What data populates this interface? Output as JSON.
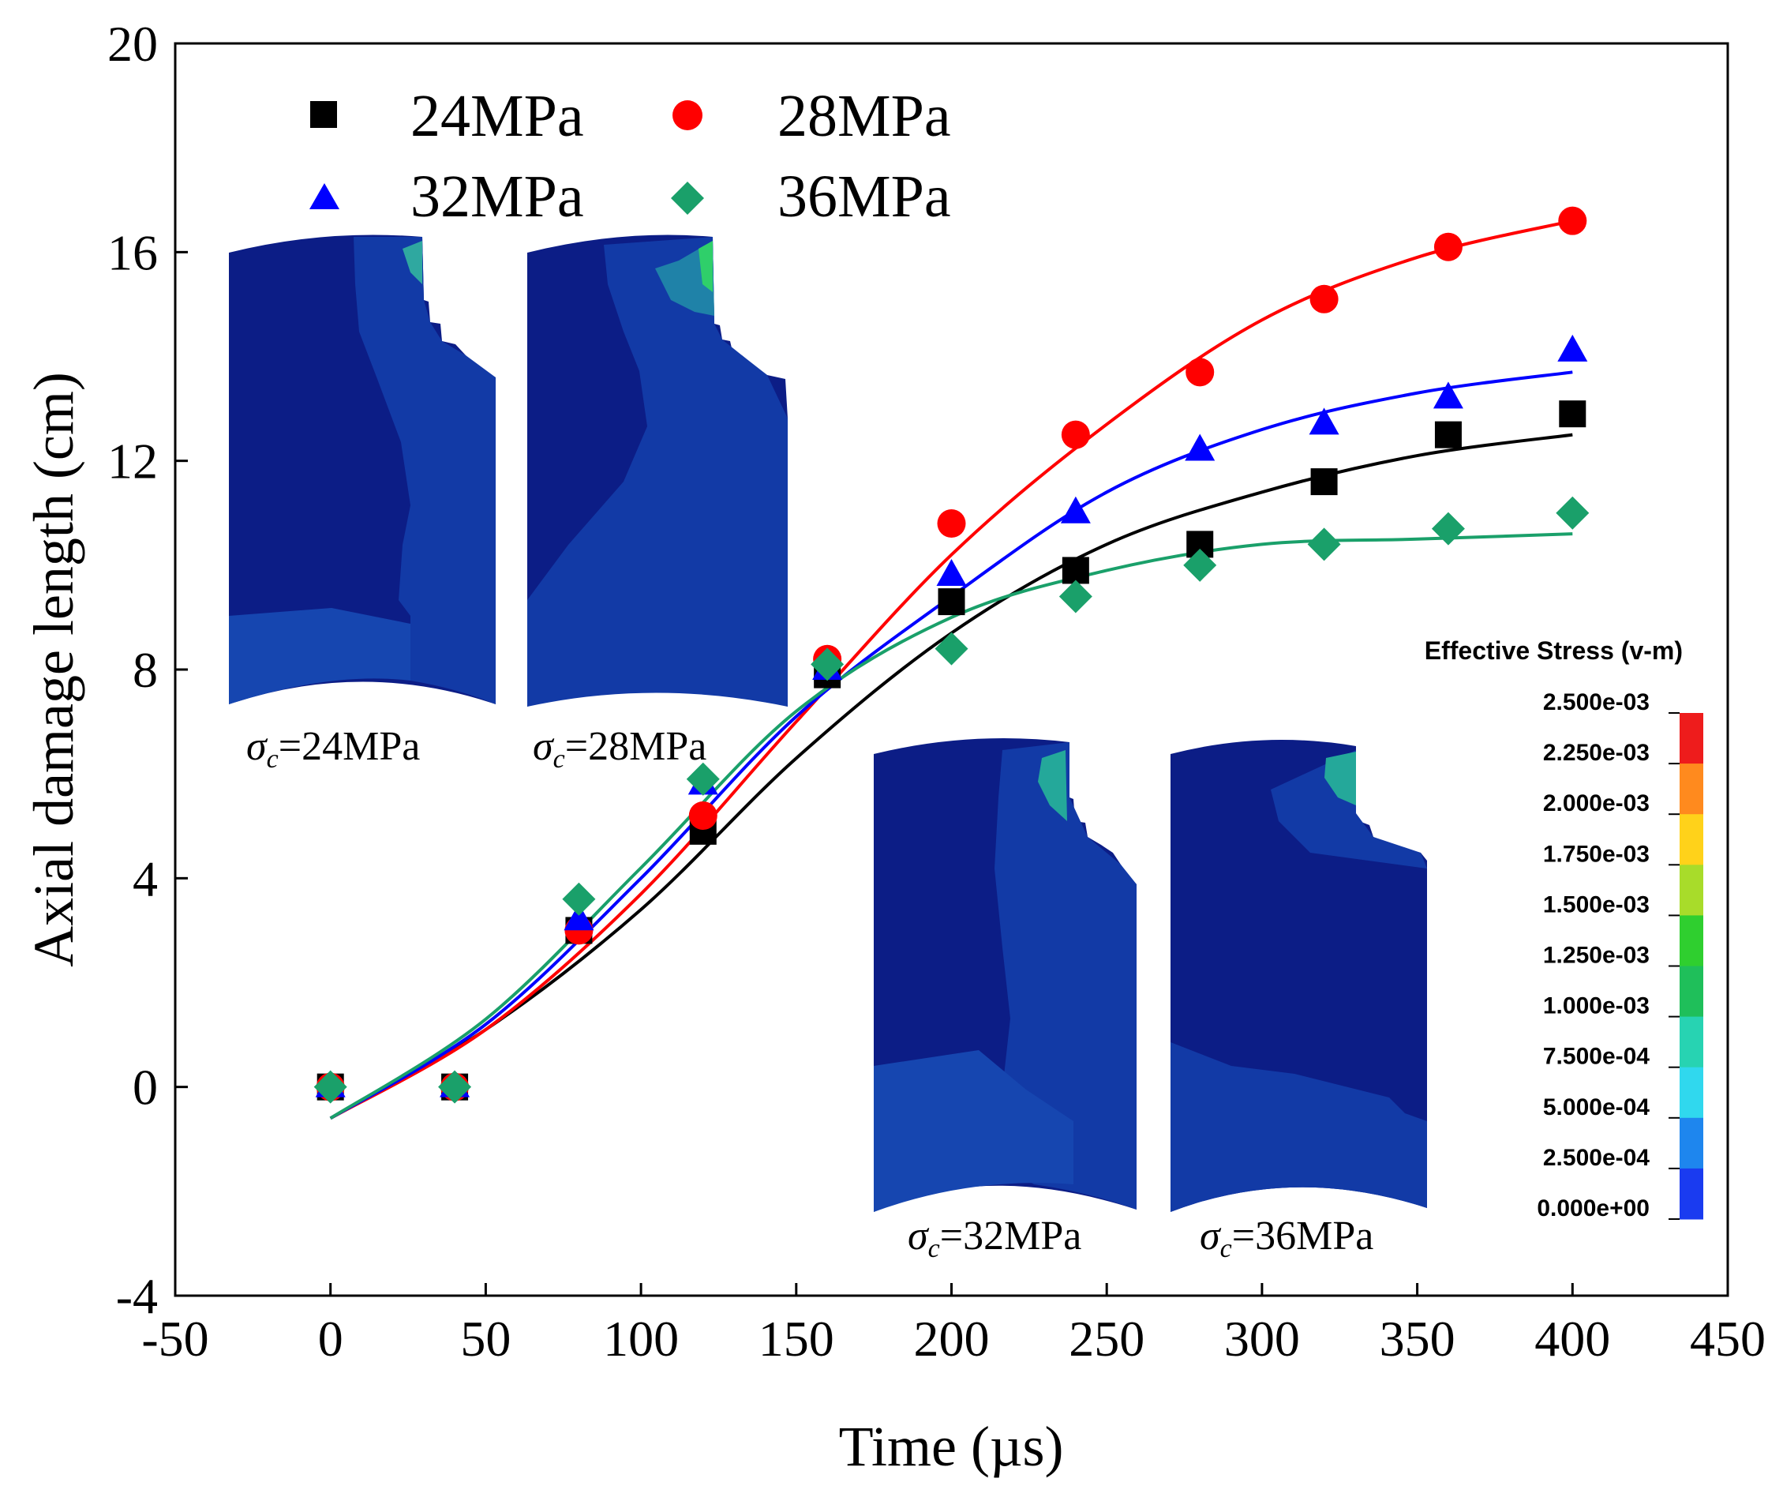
{
  "chart_data": {
    "type": "scatter",
    "title": "",
    "xlabel": "Time (µs)",
    "ylabel": "Axial damage length (cm)",
    "xlim": [
      -50,
      450
    ],
    "ylim": [
      -4,
      20
    ],
    "xticks": [
      -50,
      0,
      50,
      100,
      150,
      200,
      250,
      300,
      350,
      400,
      450
    ],
    "yticks": [
      -4,
      0,
      4,
      8,
      12,
      16,
      20
    ],
    "legend_position": "top-left",
    "series": [
      {
        "name": "24MPa",
        "color": "#000000",
        "marker": "square",
        "x": [
          0,
          40,
          80,
          120,
          160,
          200,
          240,
          280,
          320,
          360,
          400
        ],
        "values": [
          0,
          0,
          3.0,
          4.9,
          7.9,
          9.3,
          9.9,
          10.4,
          11.6,
          12.5,
          12.9
        ],
        "fit": [
          [
            0,
            -0.6
          ],
          [
            50,
            1.1
          ],
          [
            100,
            3.4
          ],
          [
            150,
            6.3
          ],
          [
            200,
            8.7
          ],
          [
            250,
            10.4
          ],
          [
            300,
            11.4
          ],
          [
            350,
            12.1
          ],
          [
            400,
            12.5
          ]
        ]
      },
      {
        "name": "28MPa",
        "color": "#ff0000",
        "marker": "circle",
        "x": [
          0,
          40,
          80,
          120,
          160,
          200,
          240,
          280,
          320,
          360,
          400
        ],
        "values": [
          0,
          0,
          3.0,
          5.2,
          8.2,
          10.8,
          12.5,
          13.7,
          15.1,
          16.1,
          16.6
        ],
        "fit": [
          [
            0,
            -0.6
          ],
          [
            50,
            1.1
          ],
          [
            100,
            3.7
          ],
          [
            150,
            7.0
          ],
          [
            200,
            10.2
          ],
          [
            250,
            12.7
          ],
          [
            300,
            14.7
          ],
          [
            350,
            15.9
          ],
          [
            400,
            16.6
          ]
        ]
      },
      {
        "name": "32MPa",
        "color": "#0000ff",
        "marker": "triangle",
        "x": [
          0,
          40,
          80,
          120,
          160,
          200,
          240,
          280,
          320,
          360,
          400
        ],
        "values": [
          0,
          0,
          3.2,
          5.8,
          8.0,
          9.8,
          11.0,
          12.2,
          12.7,
          13.2,
          14.1
        ],
        "fit": [
          [
            0,
            -0.6
          ],
          [
            50,
            1.2
          ],
          [
            100,
            4.0
          ],
          [
            150,
            7.1
          ],
          [
            200,
            9.4
          ],
          [
            250,
            11.4
          ],
          [
            300,
            12.6
          ],
          [
            350,
            13.3
          ],
          [
            400,
            13.7
          ]
        ]
      },
      {
        "name": "36MPa",
        "color": "#1aa06a",
        "marker": "diamond",
        "x": [
          0,
          40,
          80,
          120,
          160,
          200,
          240,
          280,
          320,
          360,
          400
        ],
        "values": [
          0,
          0,
          3.6,
          5.9,
          8.1,
          8.4,
          9.4,
          10.0,
          10.4,
          10.7,
          11.0
        ],
        "fit": [
          [
            0,
            -0.6
          ],
          [
            50,
            1.3
          ],
          [
            100,
            4.2
          ],
          [
            150,
            7.2
          ],
          [
            200,
            9.0
          ],
          [
            250,
            9.9
          ],
          [
            300,
            10.4
          ],
          [
            350,
            10.5
          ],
          [
            400,
            10.6
          ]
        ]
      }
    ],
    "insets": [
      {
        "caption_symbol": "σ",
        "caption_sub": "c",
        "caption_value": "=24MPa"
      },
      {
        "caption_symbol": "σ",
        "caption_sub": "c",
        "caption_value": "=28MPa"
      },
      {
        "caption_symbol": "σ",
        "caption_sub": "c",
        "caption_value": "=32MPa"
      },
      {
        "caption_symbol": "σ",
        "caption_sub": "c",
        "caption_value": "=36MPa"
      }
    ],
    "colorbar": {
      "title": "Effective Stress (v-m)",
      "labels": [
        "2.500e-03",
        "2.250e-03",
        "2.000e-03",
        "1.750e-03",
        "1.500e-03",
        "1.250e-03",
        "1.000e-03",
        "7.500e-04",
        "5.000e-04",
        "2.500e-04",
        "0.000e+00"
      ],
      "colors": [
        "#ee1c1c",
        "#ff8a1e",
        "#ffd21a",
        "#a8dc2a",
        "#2fcf2f",
        "#1fbf5a",
        "#27d3b2",
        "#30d8ee",
        "#1e86ee",
        "#1a3bf0"
      ]
    }
  }
}
